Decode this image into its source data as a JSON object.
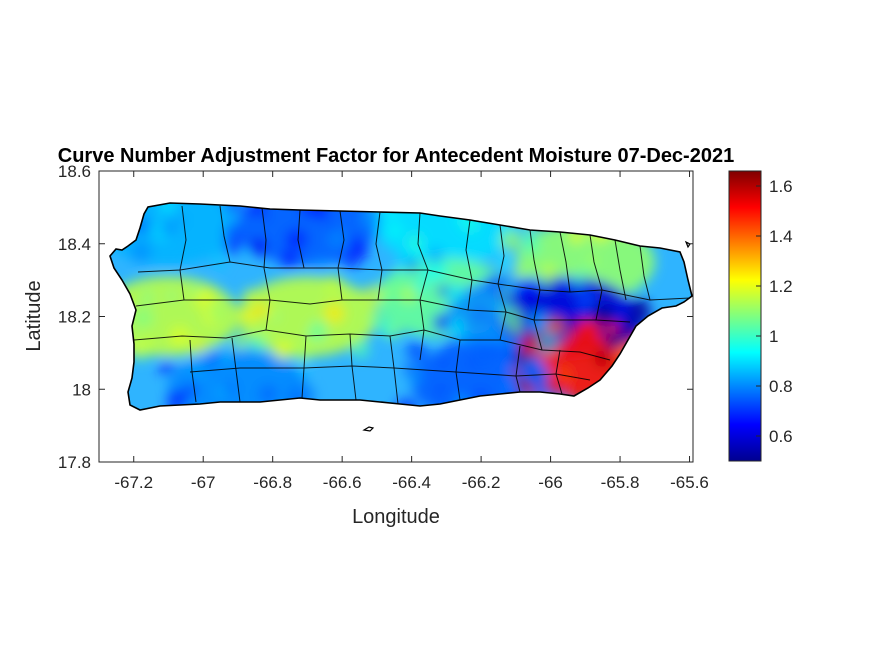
{
  "chart_data": {
    "type": "heatmap",
    "title": "Curve Number Adjustment Factor for Antecedent Moisture 07-Dec-2021",
    "xlabel": "Longitude",
    "ylabel": "Latitude",
    "xlim": [
      -67.3,
      -65.59
    ],
    "ylim": [
      17.8,
      18.6
    ],
    "xticks": [
      -67.2,
      -67,
      -66.8,
      -66.6,
      -66.4,
      -66.2,
      -66,
      -65.8,
      -65.6
    ],
    "xtick_labels": [
      "-67.2",
      "-67",
      "-66.8",
      "-66.6",
      "-66.4",
      "-66.2",
      "-66",
      "-65.8",
      "-65.6"
    ],
    "yticks": [
      17.8,
      18,
      18.2,
      18.4,
      18.6
    ],
    "ytick_labels": [
      "17.8",
      "18",
      "18.2",
      "18.4",
      "18.6"
    ],
    "colorbar": {
      "colormap": "jet",
      "range": [
        0.5,
        1.66
      ],
      "ticks": [
        0.6,
        0.8,
        1,
        1.2,
        1.4,
        1.6
      ],
      "tick_labels": [
        "0.6",
        "0.8",
        "1",
        "1.2",
        "1.4",
        "1.6"
      ]
    },
    "region_values": [
      {
        "lon": -67.1,
        "lat": 18.45,
        "value": 0.85
      },
      {
        "lon": -66.7,
        "lat": 18.45,
        "value": 0.75
      },
      {
        "lon": -66.3,
        "lat": 18.45,
        "value": 0.9
      },
      {
        "lon": -65.9,
        "lat": 18.35,
        "value": 1.1
      },
      {
        "lon": -67.1,
        "lat": 18.2,
        "value": 1.15
      },
      {
        "lon": -66.7,
        "lat": 18.2,
        "value": 1.15
      },
      {
        "lon": -66.3,
        "lat": 18.25,
        "value": 1.05
      },
      {
        "lon": -66.1,
        "lat": 18.2,
        "value": 0.8
      },
      {
        "lon": -65.95,
        "lat": 18.2,
        "value": 0.6
      },
      {
        "lon": -65.9,
        "lat": 18.08,
        "value": 1.5
      },
      {
        "lon": -66.2,
        "lat": 18.02,
        "value": 0.75
      },
      {
        "lon": -66.9,
        "lat": 18.0,
        "value": 0.8
      }
    ],
    "grid": false,
    "legend": "colorbar-right"
  }
}
